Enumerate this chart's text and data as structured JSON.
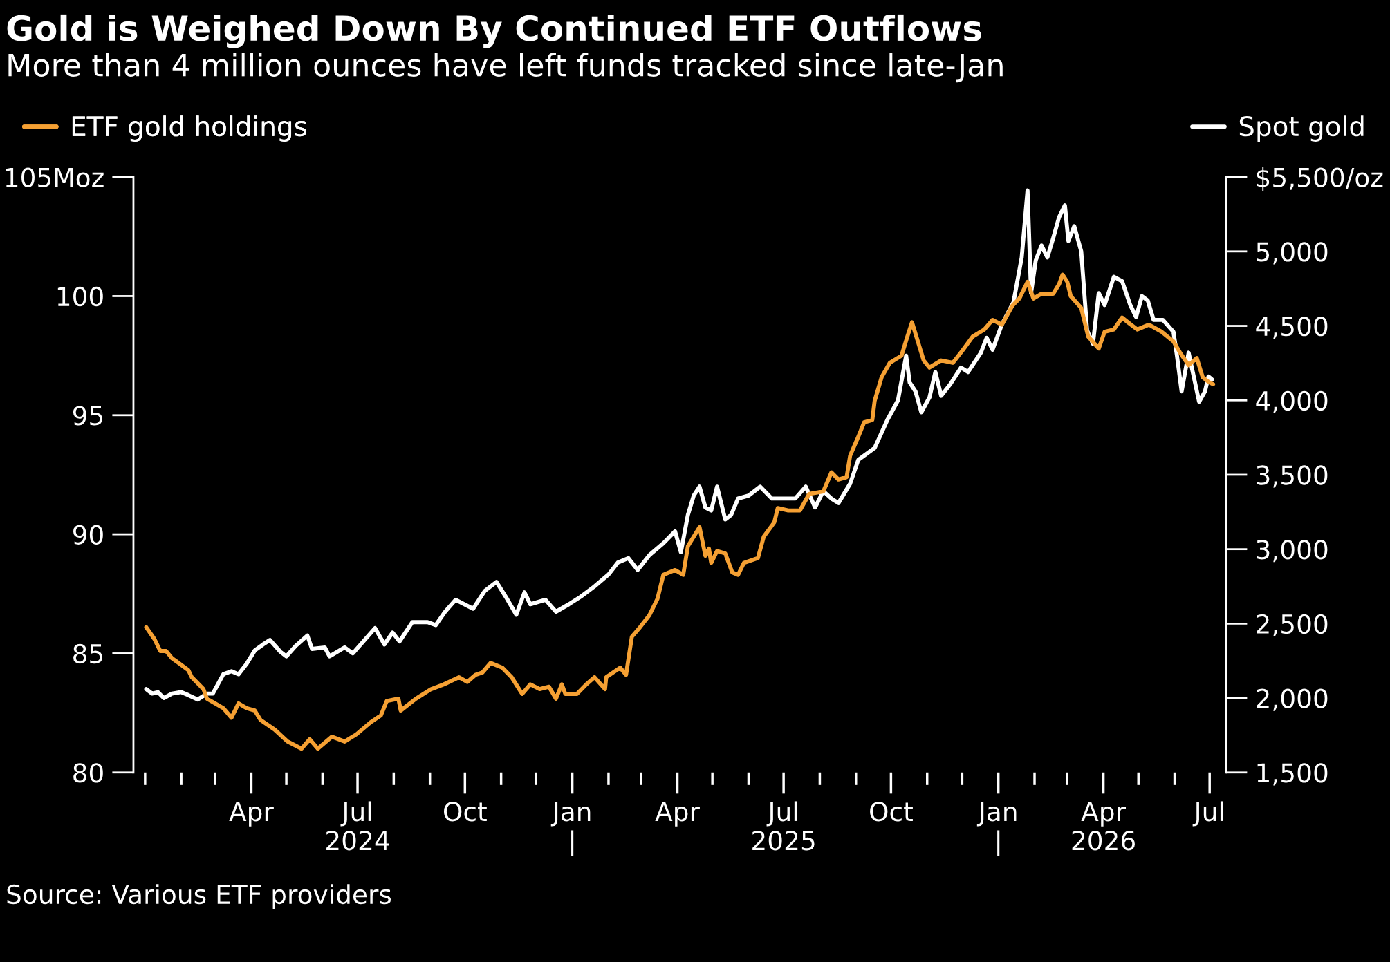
{
  "chart_data": {
    "type": "line",
    "title": "Gold is Weighed Down By Continued ETF Outflows",
    "subtitle": "More than 4 million ounces have left funds tracked since late-Jan",
    "annotations": [
      "Source: Various ETF providers"
    ],
    "legend": "top",
    "grid": false,
    "marker": "none",
    "line_style": "solid",
    "xlim": [
      "2023-12-22",
      "2026-07-15"
    ],
    "xticks": [
      {
        "value": "2024-04-01",
        "label": "Apr\n "
      },
      {
        "value": "2024-07-01",
        "label": "Jul\n2024"
      },
      {
        "value": "2024-10-01",
        "label": "Oct\n "
      },
      {
        "value": "2025-01-01",
        "label": "Jan\n|"
      },
      {
        "value": "2025-04-01",
        "label": "Apr\n "
      },
      {
        "value": "2025-07-01",
        "label": "Jul\n2025"
      },
      {
        "value": "2025-10-01",
        "label": "Oct\n "
      },
      {
        "value": "2026-01-01",
        "label": "Jan\n|"
      },
      {
        "value": "2026-04-01",
        "label": "Apr\n2026"
      },
      {
        "value": "2026-07-01",
        "label": "Jul\n "
      }
    ],
    "ylim": [
      80,
      105
    ],
    "yticks": [
      80,
      85,
      90,
      95,
      100,
      {
        "value": 105,
        "label": "105Moz"
      }
    ],
    "y2lim": [
      1500,
      5500
    ],
    "y2ticks": [
      {
        "value": 1500,
        "label": "1,500"
      },
      {
        "value": 2000,
        "label": "2,000"
      },
      {
        "value": 2500,
        "label": "2,500"
      },
      {
        "value": 3000,
        "label": "3,000"
      },
      {
        "value": 3500,
        "label": "3,500"
      },
      {
        "value": 4000,
        "label": "4,000"
      },
      {
        "value": 4500,
        "label": "4,500"
      },
      {
        "value": 5000,
        "label": "5,000"
      },
      {
        "value": 5500,
        "label": "$5,500/oz"
      }
    ],
    "series": [
      {
        "name": "ETF gold holdings",
        "color": "#f5a033",
        "x": [
          "2024-01-02",
          "2024-01-09",
          "2024-01-14",
          "2024-01-19",
          "2024-01-24",
          "2024-02-07",
          "2024-02-10",
          "2024-02-20",
          "2024-02-23",
          "2024-03-08",
          "2024-03-15",
          "2024-03-21",
          "2024-03-28",
          "2024-04-04",
          "2024-04-09",
          "2024-04-21",
          "2024-05-02",
          "2024-05-14",
          "2024-05-21",
          "2024-05-28",
          "2024-06-09",
          "2024-06-20",
          "2024-06-30",
          "2024-07-12",
          "2024-07-21",
          "2024-07-26",
          "2024-08-05",
          "2024-08-07",
          "2024-08-20",
          "2024-09-02",
          "2024-09-13",
          "2024-09-26",
          "2024-10-03",
          "2024-10-10",
          "2024-10-16",
          "2024-10-23",
          "2024-11-02",
          "2024-11-10",
          "2024-11-19",
          "2024-11-26",
          "2024-12-04",
          "2024-12-12",
          "2024-12-18",
          "2024-12-23",
          "2024-12-26",
          "2025-01-05",
          "2025-01-13",
          "2025-01-20",
          "2025-01-29",
          "2025-01-30",
          "2025-02-11",
          "2025-02-16",
          "2025-02-21",
          "2025-02-28",
          "2025-03-08",
          "2025-03-15",
          "2025-03-20",
          "2025-03-30",
          "2025-04-06",
          "2025-04-10",
          "2025-04-20",
          "2025-04-25",
          "2025-04-28",
          "2025-04-30",
          "2025-05-05",
          "2025-05-12",
          "2025-05-18",
          "2025-05-23",
          "2025-05-28",
          "2025-06-09",
          "2025-06-14",
          "2025-06-23",
          "2025-06-26",
          "2025-07-05",
          "2025-07-15",
          "2025-07-23",
          "2025-08-04",
          "2025-08-11",
          "2025-08-17",
          "2025-08-24",
          "2025-08-27",
          "2025-09-03",
          "2025-09-08",
          "2025-09-15",
          "2025-09-17",
          "2025-09-23",
          "2025-09-30",
          "2025-10-10",
          "2025-10-15",
          "2025-10-19",
          "2025-10-24",
          "2025-10-29",
          "2025-11-03",
          "2025-11-13",
          "2025-11-23",
          "2025-12-01",
          "2025-12-10",
          "2025-12-20",
          "2025-12-27",
          "2026-01-04",
          "2026-01-13",
          "2026-01-19",
          "2026-01-26",
          "2026-01-31",
          "2026-02-07",
          "2026-02-17",
          "2026-02-22",
          "2026-02-25",
          "2026-03-01",
          "2026-03-04",
          "2026-03-13",
          "2026-03-19",
          "2026-03-28",
          "2026-04-02",
          "2026-04-10",
          "2026-04-17",
          "2026-04-22",
          "2026-04-30",
          "2026-05-10",
          "2026-05-21",
          "2026-05-31",
          "2026-06-06",
          "2026-06-13",
          "2026-06-20",
          "2026-06-25",
          "2026-06-30",
          "2026-07-04"
        ],
        "values": [
          86.1,
          85.6,
          85.1,
          85.1,
          84.8,
          84.3,
          84.0,
          83.5,
          83.1,
          82.7,
          82.3,
          82.9,
          82.7,
          82.6,
          82.2,
          81.8,
          81.3,
          81.0,
          81.4,
          81.0,
          81.5,
          81.3,
          81.6,
          82.1,
          82.4,
          83.0,
          83.1,
          82.6,
          83.1,
          83.5,
          83.7,
          84.0,
          83.8,
          84.1,
          84.2,
          84.6,
          84.4,
          84.0,
          83.3,
          83.7,
          83.5,
          83.6,
          83.1,
          83.7,
          83.3,
          83.3,
          83.7,
          84.0,
          83.5,
          84.0,
          84.4,
          84.1,
          85.7,
          86.1,
          86.6,
          87.3,
          88.3,
          88.5,
          88.3,
          89.5,
          90.3,
          89.1,
          89.4,
          88.8,
          89.3,
          89.2,
          88.4,
          88.3,
          88.8,
          89.0,
          89.9,
          90.5,
          91.1,
          91.0,
          91.0,
          91.7,
          91.8,
          92.6,
          92.3,
          92.4,
          93.3,
          94.1,
          94.7,
          94.8,
          95.6,
          96.6,
          97.2,
          97.5,
          98.3,
          98.9,
          98.1,
          97.3,
          97.0,
          97.3,
          97.2,
          97.7,
          98.3,
          98.6,
          99.0,
          98.8,
          99.6,
          99.9,
          100.6,
          99.9,
          100.1,
          100.1,
          100.5,
          100.9,
          100.6,
          100.0,
          99.5,
          98.3,
          97.8,
          98.5,
          98.6,
          99.1,
          98.9,
          98.6,
          98.8,
          98.5,
          98.1,
          97.6,
          97.1,
          97.4,
          96.6,
          96.4,
          96.3
        ]
      },
      {
        "name": "Spot gold",
        "color": "#ffffff",
        "axis": "y2",
        "x": [
          "2024-01-02",
          "2024-01-07",
          "2024-01-12",
          "2024-01-17",
          "2024-01-24",
          "2024-02-01",
          "2024-02-07",
          "2024-02-15",
          "2024-02-23",
          "2024-02-28",
          "2024-03-08",
          "2024-03-15",
          "2024-03-21",
          "2024-03-28",
          "2024-04-04",
          "2024-04-11",
          "2024-04-17",
          "2024-04-26",
          "2024-05-01",
          "2024-05-09",
          "2024-05-19",
          "2024-05-23",
          "2024-06-03",
          "2024-06-07",
          "2024-06-20",
          "2024-06-27",
          "2024-07-07",
          "2024-07-16",
          "2024-07-24",
          "2024-07-31",
          "2024-08-06",
          "2024-08-17",
          "2024-08-30",
          "2024-09-06",
          "2024-09-14",
          "2024-09-23",
          "2024-10-08",
          "2024-10-18",
          "2024-10-28",
          "2024-11-05",
          "2024-11-14",
          "2024-11-21",
          "2024-11-26",
          "2024-12-09",
          "2024-12-18",
          "2024-12-29",
          "2025-01-08",
          "2025-01-20",
          "2025-02-01",
          "2025-02-09",
          "2025-02-18",
          "2025-02-26",
          "2025-03-08",
          "2025-03-20",
          "2025-03-30",
          "2025-04-04",
          "2025-04-10",
          "2025-04-15",
          "2025-04-20",
          "2025-04-25",
          "2025-04-30",
          "2025-05-05",
          "2025-05-12",
          "2025-05-17",
          "2025-05-23",
          "2025-06-01",
          "2025-06-11",
          "2025-06-21",
          "2025-07-01",
          "2025-07-11",
          "2025-07-20",
          "2025-07-28",
          "2025-08-04",
          "2025-08-11",
          "2025-08-17",
          "2025-08-27",
          "2025-09-03",
          "2025-09-17",
          "2025-09-28",
          "2025-10-07",
          "2025-10-14",
          "2025-10-17",
          "2025-10-22",
          "2025-10-27",
          "2025-11-03",
          "2025-11-08",
          "2025-11-13",
          "2025-11-21",
          "2025-11-30",
          "2025-12-06",
          "2025-12-17",
          "2025-12-22",
          "2025-12-27",
          "2026-01-04",
          "2026-01-14",
          "2026-01-21",
          "2026-01-26",
          "2026-01-29",
          "2026-02-02",
          "2026-02-07",
          "2026-02-12",
          "2026-02-17",
          "2026-02-22",
          "2026-02-27",
          "2026-03-02",
          "2026-03-07",
          "2026-03-13",
          "2026-03-18",
          "2026-03-23",
          "2026-03-28",
          "2026-04-02",
          "2026-04-10",
          "2026-04-17",
          "2026-04-24",
          "2026-04-29",
          "2026-05-04",
          "2026-05-09",
          "2026-05-14",
          "2026-05-22",
          "2026-05-31",
          "2026-06-03",
          "2026-06-07",
          "2026-06-13",
          "2026-06-22",
          "2026-06-27",
          "2026-06-30",
          "2026-07-03"
        ],
        "values": [
          2060,
          2030,
          2040,
          2000,
          2030,
          2040,
          2020,
          1990,
          2030,
          2030,
          2160,
          2180,
          2160,
          2230,
          2320,
          2360,
          2390,
          2310,
          2280,
          2350,
          2420,
          2330,
          2340,
          2280,
          2340,
          2300,
          2390,
          2470,
          2360,
          2440,
          2380,
          2510,
          2510,
          2490,
          2580,
          2660,
          2600,
          2720,
          2780,
          2680,
          2560,
          2710,
          2630,
          2660,
          2580,
          2630,
          2680,
          2750,
          2830,
          2910,
          2940,
          2860,
          2960,
          3040,
          3120,
          2980,
          3230,
          3360,
          3420,
          3280,
          3260,
          3420,
          3200,
          3230,
          3340,
          3360,
          3420,
          3340,
          3340,
          3340,
          3420,
          3280,
          3390,
          3340,
          3310,
          3440,
          3600,
          3680,
          3870,
          4000,
          4300,
          4120,
          4060,
          3920,
          4020,
          4190,
          4030,
          4110,
          4220,
          4190,
          4320,
          4420,
          4340,
          4510,
          4660,
          4960,
          5410,
          4720,
          4940,
          5040,
          4960,
          5090,
          5230,
          5310,
          5070,
          5170,
          5000,
          4470,
          4380,
          4720,
          4640,
          4830,
          4800,
          4640,
          4560,
          4700,
          4670,
          4540,
          4540,
          4460,
          4300,
          4060,
          4320,
          3990,
          4060,
          4160,
          4140
        ]
      }
    ]
  }
}
